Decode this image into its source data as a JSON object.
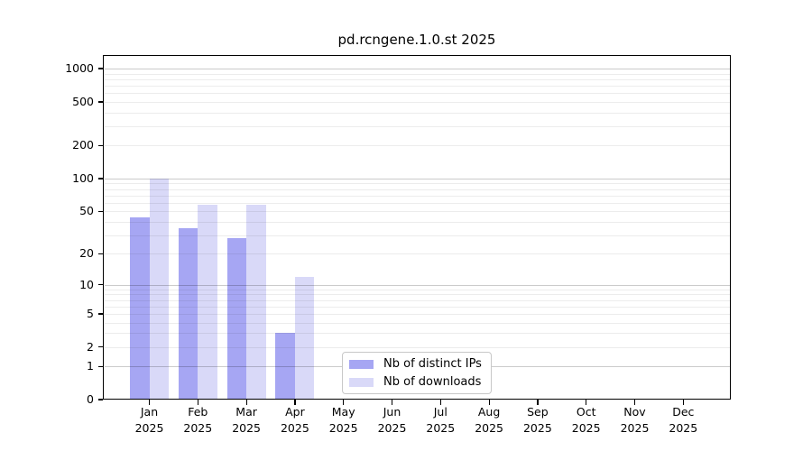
{
  "chart_data": {
    "type": "bar",
    "title": "pd.rcngene.1.0.st 2025",
    "categories": [
      "Jan",
      "Feb",
      "Mar",
      "Apr",
      "May",
      "Jun",
      "Jul",
      "Aug",
      "Sep",
      "Oct",
      "Nov",
      "Dec"
    ],
    "x_tick_year": "2025",
    "series": [
      {
        "name": "Nb of distinct IPs",
        "color": "#a6a6f3",
        "values": [
          44,
          35,
          28,
          3,
          0,
          0,
          0,
          0,
          0,
          0,
          0,
          0
        ]
      },
      {
        "name": "Nb of downloads",
        "color": "#d9d9f8",
        "values": [
          100,
          57,
          57,
          12,
          0,
          0,
          0,
          0,
          0,
          0,
          0,
          0
        ]
      }
    ],
    "y_axis": {
      "scale": "log10(value+1)",
      "tick_values": [
        1000,
        500,
        200,
        100,
        50,
        20,
        10,
        5,
        2,
        1,
        0
      ],
      "range_top": 1300
    },
    "grid": {
      "major_color": "#cbcbcb",
      "minor_color": "#ececec",
      "major_at": [
        1,
        10,
        100,
        1000
      ],
      "minor_at": [
        2,
        3,
        4,
        5,
        6,
        7,
        8,
        9,
        20,
        30,
        40,
        50,
        60,
        70,
        80,
        90,
        200,
        300,
        400,
        500,
        600,
        700,
        800,
        900
      ]
    },
    "legend": {
      "position": "bottom-center",
      "entries": [
        "Nb of distinct IPs",
        "Nb of downloads"
      ]
    },
    "axis_color": "#000000",
    "background_color": "#ffffff"
  }
}
